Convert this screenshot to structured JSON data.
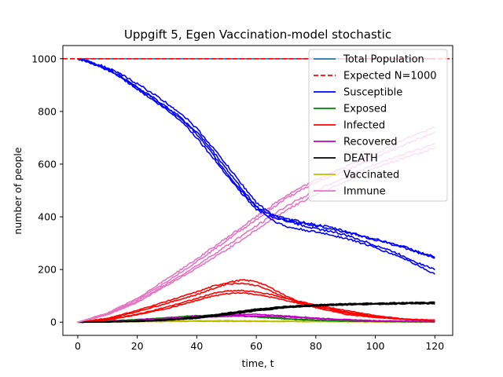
{
  "chart_data": {
    "type": "line",
    "title": "Uppgift 5, Egen Vaccination-model stochastic",
    "xlabel": "time, t",
    "ylabel": "number of people",
    "xlim": [
      -5,
      126
    ],
    "ylim": [
      -50,
      1050
    ],
    "xticks": [
      0,
      20,
      40,
      60,
      80,
      100,
      120
    ],
    "yticks": [
      0,
      200,
      400,
      600,
      800,
      1000
    ],
    "grid": false,
    "legend_position": "top-right",
    "reference_line": {
      "name": "Expected N=1000",
      "y": 1000,
      "color": "#ff0000",
      "style": "dashed"
    },
    "series": [
      {
        "name": "Total Population",
        "color": "#1f77b4",
        "runs": [
          {
            "x": [
              0,
              120
            ],
            "y": [
              1000,
              1000
            ]
          }
        ]
      },
      {
        "name": "Susceptible",
        "color": "#0000ff",
        "runs": [
          {
            "x": [
              0,
              5,
              10,
              15,
              20,
              25,
              30,
              35,
              40,
              45,
              50,
              55,
              60,
              65,
              70,
              75,
              80,
              85,
              90,
              95,
              100,
              105,
              110,
              115,
              120
            ],
            "y": [
              1000,
              985,
              962,
              930,
              892,
              855,
              815,
              775,
              712,
              642,
              568,
              498,
              438,
              408,
              392,
              382,
              370,
              360,
              345,
              330,
              315,
              300,
              285,
              265,
              248
            ]
          },
          {
            "x": [
              0,
              5,
              10,
              15,
              20,
              25,
              30,
              35,
              40,
              45,
              50,
              55,
              60,
              65,
              70,
              75,
              80,
              85,
              90,
              95,
              100,
              105,
              110,
              115,
              120
            ],
            "y": [
              1000,
              983,
              958,
              925,
              885,
              845,
              805,
              762,
              700,
              630,
              560,
              490,
              428,
              398,
              385,
              376,
              366,
              356,
              342,
              328,
              312,
              298,
              282,
              262,
              245
            ]
          },
          {
            "x": [
              0,
              5,
              10,
              15,
              20,
              25,
              30,
              35,
              40,
              45,
              50,
              55,
              60,
              65,
              70,
              75,
              80,
              85,
              90,
              95,
              100,
              105,
              110,
              115,
              120
            ],
            "y": [
              1000,
              985,
              965,
              938,
              905,
              870,
              830,
              790,
              735,
              668,
              598,
              525,
              455,
              410,
              385,
              368,
              355,
              345,
              330,
              312,
              292,
              272,
              248,
              222,
              200
            ]
          },
          {
            "x": [
              0,
              5,
              10,
              15,
              20,
              25,
              30,
              35,
              40,
              45,
              50,
              55,
              60,
              65,
              70,
              75,
              80,
              85,
              90,
              95,
              100,
              105,
              110,
              115,
              120
            ],
            "y": [
              1000,
              982,
              958,
              928,
              890,
              852,
              812,
              770,
              722,
              655,
              582,
              508,
              440,
              390,
              362,
              352,
              342,
              332,
              318,
              302,
              282,
              262,
              240,
              212,
              182
            ]
          }
        ]
      },
      {
        "name": "Exposed",
        "color": "#008000",
        "runs": [
          {
            "x": [
              0,
              10,
              20,
              30,
              40,
              50,
              60,
              70,
              80,
              90,
              100,
              110,
              120
            ],
            "y": [
              0,
              5,
              10,
              18,
              25,
              28,
              22,
              14,
              8,
              5,
              3,
              2,
              2
            ]
          },
          {
            "x": [
              0,
              10,
              20,
              30,
              40,
              50,
              60,
              70,
              80,
              90,
              100,
              110,
              120
            ],
            "y": [
              0,
              4,
              9,
              15,
              22,
              26,
              20,
              12,
              7,
              4,
              3,
              2,
              1
            ]
          }
        ]
      },
      {
        "name": "Infected",
        "color": "#ff0000",
        "runs": [
          {
            "x": [
              0,
              10,
              20,
              30,
              40,
              45,
              50,
              55,
              60,
              65,
              70,
              75,
              80,
              90,
              100,
              110,
              120
            ],
            "y": [
              0,
              15,
              45,
              80,
              115,
              135,
              150,
              160,
              155,
              130,
              100,
              75,
              55,
              30,
              18,
              10,
              8
            ]
          },
          {
            "x": [
              0,
              10,
              20,
              30,
              40,
              45,
              50,
              55,
              60,
              65,
              70,
              75,
              80,
              90,
              100,
              110,
              120
            ],
            "y": [
              0,
              12,
              40,
              72,
              105,
              125,
              145,
              148,
              140,
              118,
              92,
              72,
              60,
              35,
              20,
              12,
              8
            ]
          },
          {
            "x": [
              0,
              10,
              20,
              30,
              40,
              45,
              50,
              55,
              60,
              65,
              70,
              75,
              80,
              90,
              100,
              110,
              120
            ],
            "y": [
              0,
              10,
              30,
              58,
              90,
              108,
              118,
              120,
              115,
              105,
              90,
              78,
              65,
              45,
              25,
              12,
              7
            ]
          },
          {
            "x": [
              0,
              10,
              20,
              30,
              40,
              45,
              50,
              55,
              60,
              65,
              70,
              75,
              80,
              90,
              100,
              110,
              120
            ],
            "y": [
              0,
              8,
              28,
              52,
              82,
              98,
              108,
              112,
              105,
              95,
              82,
              70,
              60,
              40,
              22,
              12,
              6
            ]
          }
        ]
      },
      {
        "name": "Recovered",
        "color": "#bf00bf",
        "runs": [
          {
            "x": [
              0,
              10,
              20,
              30,
              40,
              50,
              60,
              70,
              80,
              90,
              100,
              110,
              120
            ],
            "y": [
              0,
              3,
              8,
              15,
              22,
              28,
              30,
              24,
              16,
              10,
              6,
              4,
              3
            ]
          },
          {
            "x": [
              0,
              10,
              20,
              30,
              40,
              50,
              60,
              70,
              80,
              90,
              100,
              110,
              120
            ],
            "y": [
              0,
              2,
              6,
              12,
              18,
              22,
              24,
              20,
              14,
              9,
              5,
              3,
              2
            ]
          }
        ]
      },
      {
        "name": "DEATH",
        "color": "#000000",
        "runs": [
          {
            "x": [
              0,
              10,
              20,
              30,
              40,
              50,
              60,
              70,
              80,
              90,
              100,
              110,
              120
            ],
            "y": [
              0,
              2,
              5,
              10,
              20,
              35,
              50,
              60,
              66,
              70,
              72,
              74,
              75
            ]
          },
          {
            "x": [
              0,
              10,
              20,
              30,
              40,
              50,
              60,
              70,
              80,
              90,
              100,
              110,
              120
            ],
            "y": [
              0,
              1,
              4,
              9,
              18,
              32,
              48,
              58,
              64,
              68,
              70,
              72,
              73
            ]
          },
          {
            "x": [
              0,
              10,
              20,
              30,
              40,
              50,
              60,
              70,
              80,
              90,
              100,
              110,
              120
            ],
            "y": [
              0,
              1,
              3,
              8,
              16,
              30,
              45,
              56,
              63,
              67,
              69,
              71,
              72
            ]
          },
          {
            "x": [
              0,
              10,
              20,
              30,
              40,
              50,
              60,
              70,
              80,
              90,
              100,
              110,
              120
            ],
            "y": [
              0,
              1,
              3,
              7,
              15,
              28,
              43,
              55,
              62,
              66,
              68,
              70,
              70
            ]
          }
        ]
      },
      {
        "name": "Vaccinated",
        "color": "#bfbf00",
        "runs": [
          {
            "x": [
              0,
              20,
              40,
              60,
              80,
              100,
              120
            ],
            "y": [
              0,
              2,
              3,
              3,
              2,
              1,
              1
            ]
          },
          {
            "x": [
              0,
              20,
              40,
              60,
              80,
              100,
              120
            ],
            "y": [
              0,
              4,
              6,
              5,
              3,
              2,
              2
            ]
          }
        ]
      },
      {
        "name": "Immune",
        "color": "#e377c2",
        "runs": [
          {
            "x": [
              0,
              10,
              20,
              30,
              40,
              50,
              60,
              70,
              80,
              90,
              100,
              110,
              120
            ],
            "y": [
              0,
              35,
              90,
              165,
              240,
              320,
              400,
              480,
              540,
              590,
              640,
              695,
              740
            ]
          },
          {
            "x": [
              0,
              10,
              20,
              30,
              40,
              50,
              60,
              70,
              80,
              90,
              100,
              110,
              120
            ],
            "y": [
              0,
              32,
              85,
              155,
              230,
              310,
              390,
              470,
              530,
              575,
              625,
              675,
              720
            ]
          },
          {
            "x": [
              0,
              10,
              20,
              30,
              40,
              50,
              60,
              70,
              80,
              90,
              100,
              110,
              120
            ],
            "y": [
              0,
              30,
              80,
              145,
              215,
              290,
              365,
              440,
              500,
              550,
              600,
              640,
              675
            ]
          },
          {
            "x": [
              0,
              10,
              20,
              30,
              40,
              50,
              60,
              70,
              80,
              90,
              100,
              110,
              120
            ],
            "y": [
              0,
              28,
              75,
              140,
              205,
              275,
              350,
              425,
              485,
              535,
              585,
              625,
              660
            ]
          }
        ]
      }
    ]
  }
}
